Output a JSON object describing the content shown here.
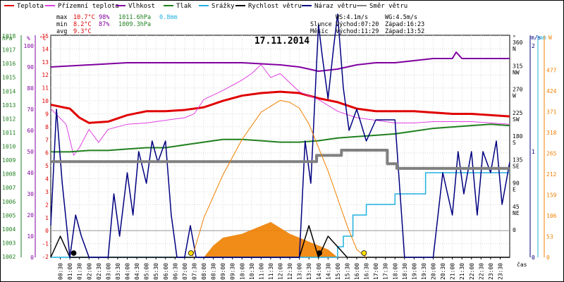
{
  "chart_data": {
    "type": "line",
    "title": "17.11.2014",
    "legend": [
      {
        "name": "Teplota",
        "color": "#e00000"
      },
      {
        "name": "Přízemní teplota",
        "color": "#e040e0"
      },
      {
        "name": "Vlhkost",
        "color": "#8000a0"
      },
      {
        "name": "Tlak",
        "color": "#208020"
      },
      {
        "name": "Srážky",
        "color": "#20b0e0"
      },
      {
        "name": "Rychlost větru",
        "color": "#000000"
      },
      {
        "name": "Náraz větru",
        "color": "#000080"
      },
      {
        "name": "Směr větru",
        "color": "#808080"
      }
    ],
    "stats": {
      "max_label": "max",
      "max_temp": "10.7°C",
      "max_hum": "98%",
      "max_press": "1011.6hPa",
      "rain": "0.8mm",
      "min_label": "min",
      "min_temp": "8.2°C",
      "min_hum": "87%",
      "min_press": "1009.3hPa",
      "avg_label": "avg",
      "avg_temp": "9.3°C",
      "ws": "WS:4.1m/s",
      "wg": "WG:4.5m/s",
      "sun_label": "Slunce",
      "sun_rise": "Východ:07:20",
      "sun_set": "Západ:16:23",
      "moon_label": "Měsíc",
      "moon_rise": "Východ:11:29",
      "moon_set": "Západ:13:52"
    },
    "axes": {
      "hpa_unit": "hPa",
      "pct_unit": "%",
      "c_unit": "°C",
      "deg_unit": "°",
      "ms_unit": "m/s",
      "mm_unit": "mm",
      "w_unit": "W",
      "x_unit": "čas",
      "hpa_ticks": [
        "1018",
        "1017",
        "1016",
        "1015",
        "1014",
        "1013",
        "1012",
        "1011",
        "1010",
        "1009",
        "1008",
        "1007",
        "1006",
        "1005",
        "1004",
        "1003",
        "1002"
      ],
      "pct_ticks": [
        "100",
        "90",
        "80",
        "70",
        "60",
        "50",
        "40",
        "30",
        "20",
        "10",
        "0"
      ],
      "c_ticks": [
        "15",
        "14",
        "13",
        "12",
        "11",
        "10",
        "9",
        "8",
        "7",
        "6",
        "5",
        "4",
        "3",
        "2",
        "1",
        "0",
        "-1",
        "-2"
      ],
      "deg_ticks": [
        {
          "v": "360",
          "d": "N"
        },
        {
          "v": "315",
          "d": "NW"
        },
        {
          "v": "270",
          "d": "W"
        },
        {
          "v": "225",
          "d": "SW"
        },
        {
          "v": "180",
          "d": "S"
        },
        {
          "v": "135",
          "d": "SE"
        },
        {
          "v": "90",
          "d": "E"
        },
        {
          "v": "45",
          "d": "NE"
        },
        {
          "v": "0",
          "d": ""
        }
      ],
      "ms_ticks": [
        "2",
        "1",
        "0"
      ],
      "w_ticks": [
        "477",
        "424",
        "371",
        "318",
        "265",
        "212",
        "159",
        "106",
        "53",
        "0"
      ],
      "x_ticks": [
        "00:30",
        "01:00",
        "01:30",
        "02:00",
        "02:30",
        "03:00",
        "03:30",
        "04:00",
        "04:30",
        "05:00",
        "05:30",
        "06:00",
        "06:30",
        "07:00",
        "07:30",
        "08:00",
        "08:30",
        "09:00",
        "09:30",
        "10:00",
        "10:30",
        "11:00",
        "11:30",
        "12:00",
        "12:30",
        "13:00",
        "13:30",
        "14:00",
        "14:30",
        "15:00",
        "15:30",
        "16:00",
        "16:30",
        "17:00",
        "17:30",
        "18:00",
        "18:30",
        "19:00",
        "19:30",
        "20:00",
        "20:30",
        "21:00",
        "21:30",
        "22:00",
        "22:30",
        "23:00",
        "23:30"
      ]
    },
    "x_range_hours": [
      0,
      24
    ],
    "series": [
      {
        "name": "Teplota",
        "unit": "°C",
        "x": [
          0,
          1,
          1.5,
          2,
          3,
          4,
          5,
          6,
          7,
          8,
          9,
          10,
          11,
          12,
          13,
          14,
          15,
          16,
          17,
          18,
          19,
          20,
          21,
          22,
          23,
          24
        ],
        "values": [
          9.7,
          9.4,
          8.7,
          8.3,
          8.4,
          8.9,
          9.2,
          9.2,
          9.3,
          9.5,
          10.0,
          10.4,
          10.6,
          10.7,
          10.6,
          10.2,
          9.9,
          9.4,
          9.2,
          9.2,
          9.2,
          9.1,
          9.0,
          9.0,
          8.9,
          8.8
        ]
      },
      {
        "name": "Přízemní teplota",
        "unit": "°C",
        "x": [
          0,
          0.8,
          1.2,
          1.5,
          2,
          2.5,
          3,
          4,
          5,
          6,
          7,
          7.5,
          8,
          9,
          10,
          10.5,
          11,
          11.5,
          12,
          13,
          14,
          15,
          16,
          17,
          18,
          19,
          20,
          21,
          22,
          23,
          24
        ],
        "values": [
          9.4,
          8.2,
          5.8,
          6.4,
          7.8,
          6.8,
          7.8,
          8.2,
          8.3,
          8.5,
          8.7,
          9.0,
          10.1,
          10.8,
          11.6,
          12.1,
          12.8,
          11.8,
          12.1,
          10.7,
          10.1,
          9.2,
          8.7,
          8.5,
          8.3,
          8.3,
          8.4,
          8.4,
          8.4,
          8.3,
          8.2
        ]
      },
      {
        "name": "Vlhkost",
        "unit": "%",
        "x": [
          0,
          2,
          4,
          6,
          8,
          10,
          12,
          13,
          14,
          15,
          16,
          17,
          18,
          19,
          20,
          21,
          21.2,
          21.5,
          22,
          23,
          24
        ],
        "values": [
          90,
          91,
          92,
          92,
          92,
          92,
          91,
          90,
          88,
          89,
          91,
          92,
          92,
          93,
          94,
          94,
          97,
          94,
          94,
          94,
          94
        ]
      },
      {
        "name": "Tlak",
        "unit": "hPa",
        "x": [
          0,
          1,
          2,
          3,
          4,
          5,
          6,
          7,
          8,
          9,
          10,
          11,
          12,
          13,
          14,
          15,
          16,
          17,
          18,
          19,
          20,
          21,
          22,
          23,
          24
        ],
        "values": [
          1009.6,
          1009.6,
          1009.7,
          1009.7,
          1009.8,
          1009.9,
          1009.9,
          1010.1,
          1010.3,
          1010.5,
          1010.5,
          1010.4,
          1010.3,
          1010.3,
          1010.4,
          1010.6,
          1010.7,
          1010.8,
          1010.9,
          1011.1,
          1011.3,
          1011.4,
          1011.5,
          1011.6,
          1011.5
        ]
      },
      {
        "name": "Srážky",
        "unit": "mm",
        "x": [
          0,
          14.7,
          15,
          15.3,
          15.8,
          16.2,
          16.5,
          17.6,
          18,
          19.4,
          19.6,
          24
        ],
        "values": [
          0,
          0,
          0.1,
          0.2,
          0.4,
          0.4,
          0.5,
          0.5,
          0.6,
          0.6,
          0.8,
          0.8
        ]
      },
      {
        "name": "Rychlost větru",
        "unit": "m/s",
        "x": [
          0,
          0.5,
          1,
          1.5,
          2,
          3,
          4,
          5,
          6,
          7,
          8,
          9,
          10,
          11,
          12,
          13,
          13.5,
          14,
          14.5,
          15,
          15.5,
          16,
          17,
          17.5,
          18,
          18.5,
          19,
          20,
          21,
          22,
          23,
          24
        ],
        "values": [
          0,
          0.2,
          0,
          0,
          0,
          0,
          0,
          0,
          0,
          0,
          0,
          0,
          0,
          0,
          0,
          0,
          0.3,
          0,
          0.2,
          0.1,
          0,
          0,
          0,
          0,
          0,
          0,
          0,
          0,
          0,
          0,
          0,
          0
        ]
      },
      {
        "name": "Náraz větru",
        "unit": "m/s",
        "x": [
          0,
          0.3,
          0.6,
          1,
          1.3,
          1.6,
          2,
          2.5,
          3,
          3.3,
          3.6,
          4,
          4.3,
          4.6,
          5,
          5.3,
          5.6,
          6,
          6.3,
          6.6,
          7,
          7.3,
          7.6,
          8,
          9,
          10,
          11,
          12,
          13,
          13.3,
          13.6,
          14,
          14.2,
          14.5,
          14.8,
          15,
          15.3,
          15.6,
          16,
          16.5,
          17,
          17.5,
          18,
          18.5,
          18.8,
          19,
          20,
          20.5,
          21,
          21.3,
          21.6,
          22,
          22.3,
          22.6,
          23,
          23.3,
          23.6,
          24
        ],
        "values": [
          0.3,
          1.4,
          0.7,
          0,
          0.4,
          0.2,
          0,
          0,
          0,
          0.6,
          0.2,
          0.8,
          0.4,
          1.0,
          0.7,
          1.1,
          0.9,
          1.1,
          0.4,
          0,
          0,
          0.3,
          0,
          0,
          0,
          0,
          0,
          0,
          0,
          1.1,
          0.7,
          2.2,
          1.9,
          1.5,
          2.0,
          2.3,
          1.6,
          1.2,
          1.4,
          1.1,
          1.3,
          1.3,
          1.3,
          0,
          0,
          0,
          0,
          0.8,
          0.4,
          1.0,
          0.6,
          1.0,
          0.4,
          1.0,
          0.8,
          1.1,
          0.5,
          0.9
        ]
      },
      {
        "name": "Směr větru",
        "unit": "°",
        "x": [
          0,
          13.8,
          13.9,
          15,
          15.2,
          17.5,
          17.6,
          18,
          18.1,
          24
        ],
        "values": [
          135,
          135,
          147,
          147,
          157,
          157,
          131,
          131,
          122,
          122
        ]
      },
      {
        "name": "Solar",
        "unit": "W",
        "x": [
          7.4,
          8,
          9,
          10,
          11,
          12,
          12.5,
          13,
          13.5,
          14,
          14.5,
          15,
          15.5,
          16,
          16.5
        ],
        "values": [
          0,
          100,
          210,
          300,
          370,
          400,
          395,
          380,
          340,
          280,
          220,
          150,
          80,
          20,
          0
        ]
      }
    ],
    "solar_bars": {
      "name": "Solar measured",
      "unit": "W",
      "x": [
        8,
        8.5,
        9,
        9.5,
        10,
        10.5,
        11,
        11.5,
        12,
        12.5,
        13,
        13.5,
        14,
        14.5,
        15
      ],
      "values": [
        0,
        30,
        50,
        55,
        60,
        70,
        80,
        90,
        75,
        60,
        50,
        40,
        30,
        20,
        0
      ]
    },
    "markers": [
      {
        "time": 1.2,
        "color": "#000000"
      },
      {
        "time": 7.33,
        "color": "#ffe000"
      },
      {
        "time": 14.05,
        "color": "#000000"
      },
      {
        "time": 16.38,
        "color": "#ffe000"
      }
    ]
  }
}
